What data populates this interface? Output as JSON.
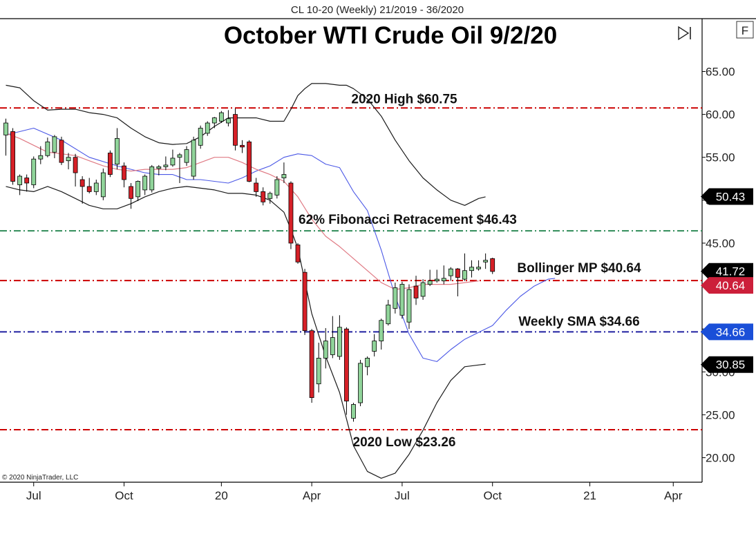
{
  "header": {
    "symbol_text": "CL 10-20 (Weekly)  21/2019 - 36/2020",
    "title": "October WTI Crude Oil 9/2/20",
    "f_button": "F",
    "copyright": "© 2020 NinjaTrader, LLC"
  },
  "colors": {
    "up": "#90d49a",
    "down": "#d62027",
    "wick": "#000000",
    "bollinger_band": "#1a1a1a",
    "bollinger_mid": "#e07a84",
    "sma": "#4a57e6",
    "red_line": "#cc0000",
    "fib_line": "#2e8b57",
    "sma_line": "#1f1fa0"
  },
  "chart_data": {
    "type": "candlestick",
    "title": "October WTI Crude Oil 9/2/20",
    "ylim": [
      16.5,
      68.5
    ],
    "yticks": [
      "20.00",
      "25.00",
      "30.00",
      "35.00",
      "40.00",
      "45.00",
      "50.00",
      "55.00",
      "60.00",
      "65.00"
    ],
    "xticks": [
      "Jul",
      "Oct",
      "20",
      "Apr",
      "Jul",
      "Oct",
      "21",
      "Apr"
    ],
    "xtick_weeks": [
      4,
      17,
      31,
      44,
      57,
      70,
      84,
      96
    ],
    "grid": false,
    "candles": [
      {
        "o": 57.6,
        "h": 59.5,
        "l": 55.2,
        "c": 59.0
      },
      {
        "o": 58.0,
        "h": 58.4,
        "l": 51.8,
        "c": 52.2
      },
      {
        "o": 51.8,
        "h": 53.0,
        "l": 50.6,
        "c": 52.8
      },
      {
        "o": 52.6,
        "h": 53.0,
        "l": 51.0,
        "c": 52.0
      },
      {
        "o": 51.8,
        "h": 55.1,
        "l": 51.4,
        "c": 54.8
      },
      {
        "o": 54.8,
        "h": 56.3,
        "l": 54.2,
        "c": 55.2
      },
      {
        "o": 55.2,
        "h": 57.3,
        "l": 55.0,
        "c": 56.8
      },
      {
        "o": 55.6,
        "h": 57.6,
        "l": 54.9,
        "c": 57.4
      },
      {
        "o": 57.0,
        "h": 57.4,
        "l": 54.1,
        "c": 54.4
      },
      {
        "o": 54.6,
        "h": 55.5,
        "l": 53.6,
        "c": 55.0
      },
      {
        "o": 55.0,
        "h": 55.4,
        "l": 51.6,
        "c": 53.2
      },
      {
        "o": 52.4,
        "h": 52.8,
        "l": 49.6,
        "c": 51.6
      },
      {
        "o": 51.6,
        "h": 52.6,
        "l": 50.8,
        "c": 51.0
      },
      {
        "o": 51.0,
        "h": 52.4,
        "l": 50.6,
        "c": 52.0
      },
      {
        "o": 50.4,
        "h": 53.7,
        "l": 50.0,
        "c": 53.2
      },
      {
        "o": 55.5,
        "h": 55.8,
        "l": 52.7,
        "c": 53.0
      },
      {
        "o": 54.2,
        "h": 58.4,
        "l": 53.6,
        "c": 57.2
      },
      {
        "o": 54.0,
        "h": 54.4,
        "l": 51.5,
        "c": 52.4
      },
      {
        "o": 51.6,
        "h": 52.0,
        "l": 49.0,
        "c": 50.2
      },
      {
        "o": 50.4,
        "h": 52.3,
        "l": 49.9,
        "c": 52.2
      },
      {
        "o": 51.2,
        "h": 53.0,
        "l": 50.6,
        "c": 52.8
      },
      {
        "o": 51.2,
        "h": 54.1,
        "l": 50.9,
        "c": 53.9
      },
      {
        "o": 53.7,
        "h": 54.1,
        "l": 52.9,
        "c": 53.9
      },
      {
        "o": 53.9,
        "h": 55.1,
        "l": 53.5,
        "c": 54.1
      },
      {
        "o": 54.1,
        "h": 55.9,
        "l": 53.9,
        "c": 54.9
      },
      {
        "o": 55.0,
        "h": 55.5,
        "l": 52.0,
        "c": 55.3
      },
      {
        "o": 54.4,
        "h": 56.3,
        "l": 54.0,
        "c": 55.9
      },
      {
        "o": 52.8,
        "h": 57.4,
        "l": 52.4,
        "c": 57.0
      },
      {
        "o": 56.4,
        "h": 58.7,
        "l": 56.0,
        "c": 58.4
      },
      {
        "o": 57.8,
        "h": 59.2,
        "l": 57.5,
        "c": 59.0
      },
      {
        "o": 59.0,
        "h": 59.7,
        "l": 58.4,
        "c": 59.6
      },
      {
        "o": 59.2,
        "h": 60.4,
        "l": 59.0,
        "c": 60.2
      },
      {
        "o": 59.0,
        "h": 60.5,
        "l": 58.6,
        "c": 59.5
      },
      {
        "o": 60.0,
        "h": 60.7,
        "l": 55.8,
        "c": 56.4
      },
      {
        "o": 56.4,
        "h": 57.0,
        "l": 55.5,
        "c": 56.2
      },
      {
        "o": 56.8,
        "h": 57.0,
        "l": 52.1,
        "c": 52.2
      },
      {
        "o": 52.0,
        "h": 52.6,
        "l": 50.4,
        "c": 51.0
      },
      {
        "o": 51.0,
        "h": 51.5,
        "l": 49.4,
        "c": 49.8
      },
      {
        "o": 50.2,
        "h": 51.0,
        "l": 49.6,
        "c": 50.8
      },
      {
        "o": 50.6,
        "h": 52.8,
        "l": 50.2,
        "c": 52.4
      },
      {
        "o": 52.6,
        "h": 54.4,
        "l": 52.0,
        "c": 53.0
      },
      {
        "o": 52.0,
        "h": 52.2,
        "l": 44.3,
        "c": 45.0
      },
      {
        "o": 44.8,
        "h": 45.0,
        "l": 42.6,
        "c": 42.8
      },
      {
        "o": 41.6,
        "h": 42.0,
        "l": 34.3,
        "c": 34.8
      },
      {
        "o": 34.8,
        "h": 35.0,
        "l": 26.4,
        "c": 27.0
      },
      {
        "o": 28.6,
        "h": 33.4,
        "l": 27.6,
        "c": 31.6
      },
      {
        "o": 31.6,
        "h": 35.1,
        "l": 30.4,
        "c": 33.6
      },
      {
        "o": 32.0,
        "h": 36.5,
        "l": 31.6,
        "c": 34.0
      },
      {
        "o": 31.8,
        "h": 36.6,
        "l": 31.4,
        "c": 35.2
      },
      {
        "o": 35.0,
        "h": 35.2,
        "l": 25.0,
        "c": 26.6
      },
      {
        "o": 24.6,
        "h": 26.4,
        "l": 24.2,
        "c": 26.2
      },
      {
        "o": 26.4,
        "h": 31.4,
        "l": 26.0,
        "c": 31.0
      },
      {
        "o": 30.6,
        "h": 31.8,
        "l": 29.6,
        "c": 31.6
      },
      {
        "o": 32.4,
        "h": 34.4,
        "l": 31.8,
        "c": 33.6
      },
      {
        "o": 33.6,
        "h": 36.2,
        "l": 32.6,
        "c": 36.0
      },
      {
        "o": 35.6,
        "h": 38.4,
        "l": 35.4,
        "c": 37.8
      },
      {
        "o": 37.4,
        "h": 40.4,
        "l": 36.8,
        "c": 39.8
      },
      {
        "o": 36.6,
        "h": 40.5,
        "l": 36.2,
        "c": 40.2
      },
      {
        "o": 35.8,
        "h": 40.2,
        "l": 35.0,
        "c": 39.6
      },
      {
        "o": 40.0,
        "h": 41.2,
        "l": 37.8,
        "c": 38.6
      },
      {
        "o": 38.8,
        "h": 40.8,
        "l": 38.4,
        "c": 40.4
      },
      {
        "o": 40.2,
        "h": 41.9,
        "l": 40.0,
        "c": 40.6
      },
      {
        "o": 40.6,
        "h": 41.9,
        "l": 40.4,
        "c": 40.8
      },
      {
        "o": 40.6,
        "h": 42.4,
        "l": 40.2,
        "c": 40.9
      },
      {
        "o": 41.2,
        "h": 42.2,
        "l": 40.6,
        "c": 42.0
      },
      {
        "o": 42.0,
        "h": 42.1,
        "l": 38.8,
        "c": 41.0
      },
      {
        "o": 40.8,
        "h": 43.8,
        "l": 40.6,
        "c": 41.8
      },
      {
        "o": 41.8,
        "h": 43.0,
        "l": 41.0,
        "c": 42.2
      },
      {
        "o": 42.0,
        "h": 43.0,
        "l": 41.8,
        "c": 42.2
      },
      {
        "o": 42.8,
        "h": 43.8,
        "l": 42.0,
        "c": 43.0
      },
      {
        "o": 43.2,
        "h": 43.3,
        "l": 41.4,
        "c": 41.7
      }
    ],
    "bollinger_upper": [
      [
        0,
        63.4
      ],
      [
        2,
        63.1
      ],
      [
        4,
        61.6
      ],
      [
        6,
        60.5
      ],
      [
        8,
        60.6
      ],
      [
        10,
        60.6
      ],
      [
        12,
        60.2
      ],
      [
        14,
        60.0
      ],
      [
        16,
        59.6
      ],
      [
        18,
        58.4
      ],
      [
        20,
        57.4
      ],
      [
        22,
        56.7
      ],
      [
        24,
        56.5
      ],
      [
        26,
        56.6
      ],
      [
        28,
        57.4
      ],
      [
        30,
        58.6
      ],
      [
        32,
        59.6
      ],
      [
        34,
        59.6
      ],
      [
        36,
        59.6
      ],
      [
        38,
        59.2
      ],
      [
        40,
        59.2
      ],
      [
        41,
        60.6
      ],
      [
        42,
        62.2
      ],
      [
        43,
        63.0
      ],
      [
        44,
        63.6
      ],
      [
        46,
        63.6
      ],
      [
        48,
        63.4
      ],
      [
        49,
        63.4
      ],
      [
        50,
        63.0
      ],
      [
        52,
        61.8
      ],
      [
        54,
        59.8
      ],
      [
        56,
        57.0
      ],
      [
        58,
        54.6
      ],
      [
        60,
        52.6
      ],
      [
        62,
        51.2
      ],
      [
        64,
        50.0
      ],
      [
        66,
        49.4
      ],
      [
        68,
        50.2
      ],
      [
        69,
        50.4
      ]
    ],
    "bollinger_lower": [
      [
        0,
        51.6
      ],
      [
        2,
        51.2
      ],
      [
        4,
        51.0
      ],
      [
        6,
        51.6
      ],
      [
        8,
        51.0
      ],
      [
        10,
        50.2
      ],
      [
        12,
        49.4
      ],
      [
        14,
        49.0
      ],
      [
        16,
        49.0
      ],
      [
        18,
        49.6
      ],
      [
        20,
        50.4
      ],
      [
        22,
        51.0
      ],
      [
        24,
        51.4
      ],
      [
        26,
        51.6
      ],
      [
        28,
        51.4
      ],
      [
        30,
        51.2
      ],
      [
        32,
        50.8
      ],
      [
        34,
        50.8
      ],
      [
        36,
        50.6
      ],
      [
        38,
        50.0
      ],
      [
        40,
        48.6
      ],
      [
        41,
        46.6
      ],
      [
        42,
        44.4
      ],
      [
        43,
        40.6
      ],
      [
        44,
        36.8
      ],
      [
        46,
        31.8
      ],
      [
        48,
        27.6
      ],
      [
        50,
        21.4
      ],
      [
        52,
        18.4
      ],
      [
        54,
        17.6
      ],
      [
        56,
        18.2
      ],
      [
        58,
        20.4
      ],
      [
        60,
        23.2
      ],
      [
        62,
        26.4
      ],
      [
        64,
        29.0
      ],
      [
        66,
        30.6
      ],
      [
        68,
        30.8
      ],
      [
        69,
        30.9
      ]
    ],
    "bollinger_mid": [
      [
        0,
        57.8
      ],
      [
        2,
        57.2
      ],
      [
        4,
        56.4
      ],
      [
        6,
        55.6
      ],
      [
        8,
        55.4
      ],
      [
        10,
        55.2
      ],
      [
        12,
        54.6
      ],
      [
        14,
        54.0
      ],
      [
        16,
        53.6
      ],
      [
        18,
        53.4
      ],
      [
        20,
        53.6
      ],
      [
        22,
        53.6
      ],
      [
        24,
        53.6
      ],
      [
        26,
        53.8
      ],
      [
        28,
        54.4
      ],
      [
        30,
        55.0
      ],
      [
        32,
        55.0
      ],
      [
        34,
        54.4
      ],
      [
        36,
        53.6
      ],
      [
        38,
        53.0
      ],
      [
        40,
        52.2
      ],
      [
        42,
        50.4
      ],
      [
        44,
        47.8
      ],
      [
        46,
        45.8
      ],
      [
        48,
        44.6
      ],
      [
        50,
        43.2
      ],
      [
        52,
        41.8
      ],
      [
        54,
        40.4
      ],
      [
        56,
        39.6
      ],
      [
        58,
        39.8
      ],
      [
        60,
        40.2
      ],
      [
        62,
        40.2
      ],
      [
        64,
        40.2
      ],
      [
        66,
        40.4
      ],
      [
        68,
        40.6
      ]
    ],
    "sma": [
      [
        0,
        57.6
      ],
      [
        4,
        58.4
      ],
      [
        8,
        57.0
      ],
      [
        12,
        55.0
      ],
      [
        16,
        54.0
      ],
      [
        20,
        53.2
      ],
      [
        22,
        53.0
      ],
      [
        24,
        53.0
      ],
      [
        26,
        52.4
      ],
      [
        28,
        52.4
      ],
      [
        30,
        52.2
      ],
      [
        32,
        52.0
      ],
      [
        34,
        52.6
      ],
      [
        36,
        53.4
      ],
      [
        38,
        54.0
      ],
      [
        40,
        55.0
      ],
      [
        42,
        55.4
      ],
      [
        44,
        55.2
      ],
      [
        46,
        54.2
      ],
      [
        48,
        53.8
      ],
      [
        50,
        51.0
      ],
      [
        52,
        48.8
      ],
      [
        54,
        44.2
      ],
      [
        56,
        38.8
      ],
      [
        58,
        34.4
      ],
      [
        60,
        31.6
      ],
      [
        62,
        31.2
      ],
      [
        64,
        32.6
      ],
      [
        66,
        33.8
      ],
      [
        68,
        34.6
      ],
      [
        70,
        35.4
      ],
      [
        72,
        37.2
      ],
      [
        74,
        38.8
      ],
      [
        76,
        40.0
      ],
      [
        78,
        40.8
      ],
      [
        79,
        40.9
      ]
    ],
    "hlines": [
      {
        "label": "2020 High $60.75",
        "value": 60.75,
        "color": "#cc0000"
      },
      {
        "label": "62% Fibonacci Retracement $46.43",
        "value": 46.43,
        "color": "#2e8b57"
      },
      {
        "label": "Bollinger MP $40.64",
        "value": 40.64,
        "color": "#cc0000"
      },
      {
        "label": "Weekly SMA $34.66",
        "value": 34.66,
        "color": "#1f1fa0"
      },
      {
        "label": "2020 Low $23.26",
        "value": 23.26,
        "color": "#cc0000"
      }
    ],
    "price_flags": [
      {
        "text": "50.43",
        "value": 50.43,
        "color": "#000000"
      },
      {
        "text": "41.72",
        "value": 41.72,
        "color": "#000000"
      },
      {
        "text": "40.64",
        "value": 40.64,
        "color": "#cc1f3a"
      },
      {
        "text": "34.66",
        "value": 34.66,
        "color": "#1a4fd8"
      },
      {
        "text": "30.85",
        "value": 30.85,
        "color": "#000000"
      }
    ]
  }
}
